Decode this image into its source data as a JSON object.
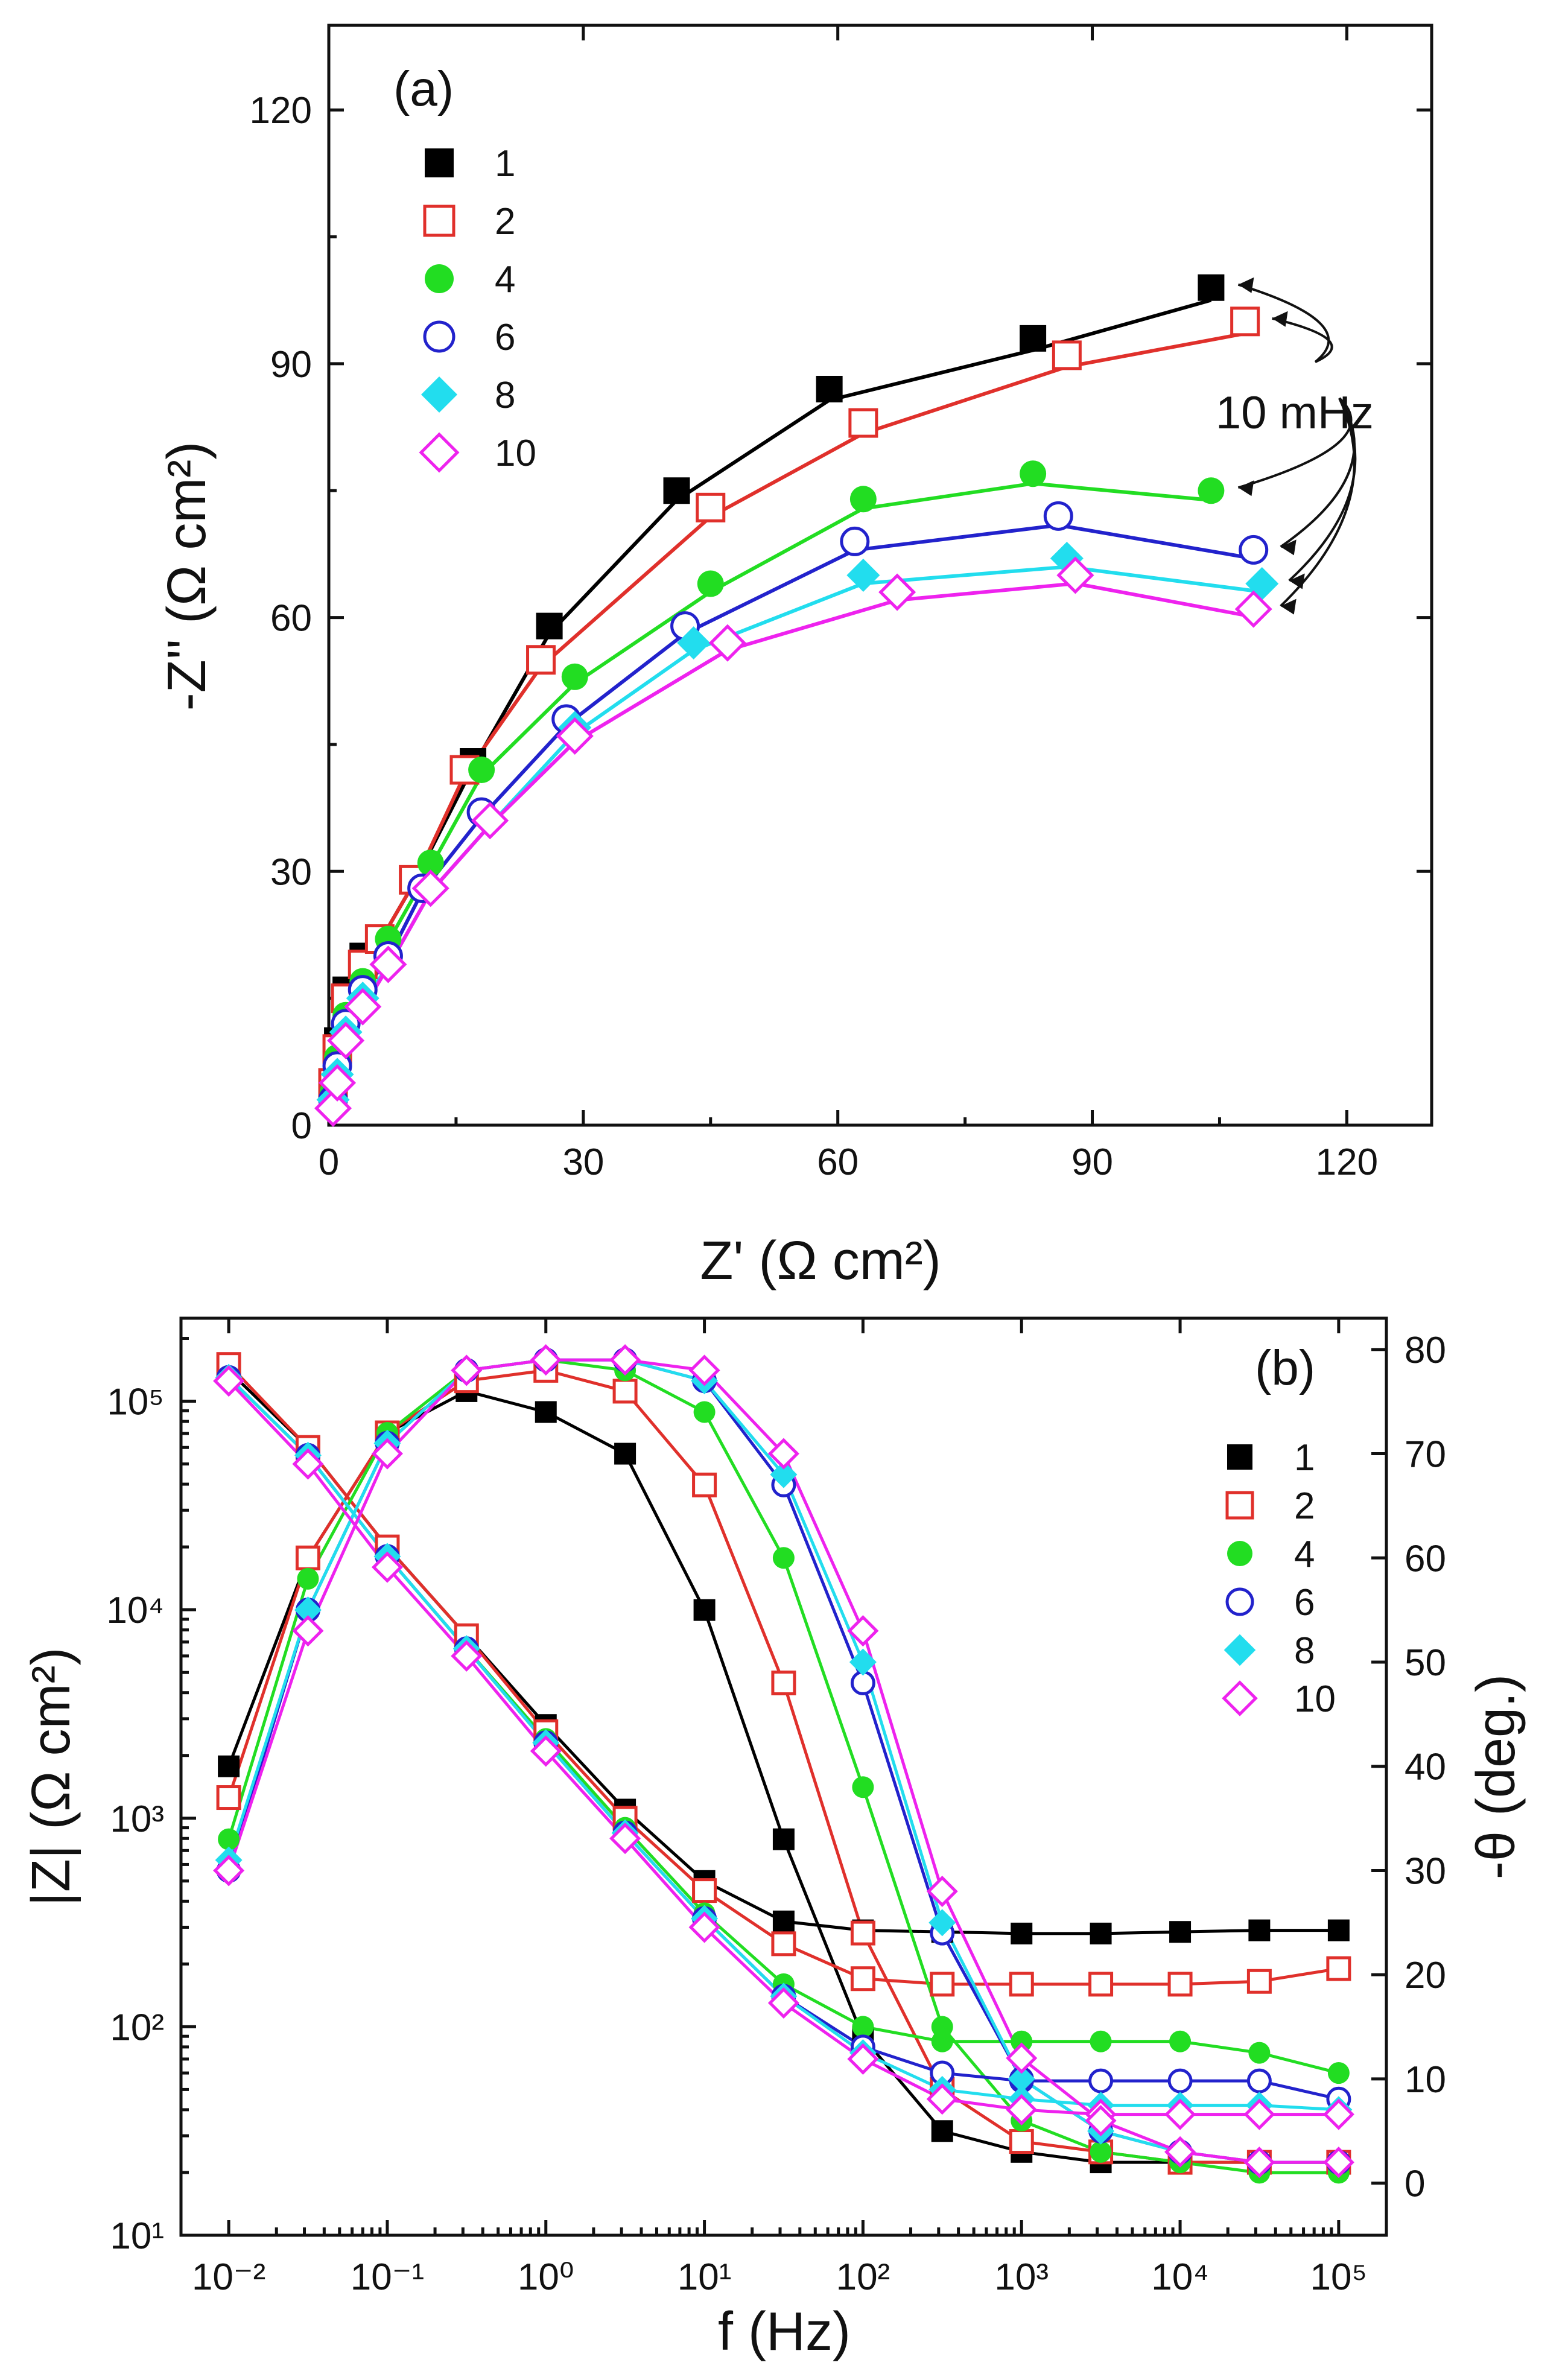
{
  "chart_data": [
    {
      "type": "scatter",
      "panel_label": "(a)",
      "xlabel": "Z' (Ω cm²)",
      "ylabel": "-Z'' (Ω cm²)",
      "xlim": [
        0,
        130
      ],
      "ylim": [
        0,
        130
      ],
      "xticks": [
        0,
        30,
        60,
        90,
        120
      ],
      "yticks": [
        0,
        30,
        60,
        90,
        120
      ],
      "annotation": "10 mHz",
      "legend_position": "top-left",
      "series": [
        {
          "name": "1",
          "color": "#000000",
          "marker": "square-filled",
          "x": [
            0.5,
            1,
            2,
            4,
            6,
            10,
            17,
            26,
            41,
            59,
            83,
            104
          ],
          "y": [
            5,
            10,
            16,
            20,
            22,
            29,
            43,
            59,
            75,
            87,
            93,
            99
          ]
        },
        {
          "name": "2",
          "color": "#e0302b",
          "marker": "square-open",
          "x": [
            0.5,
            1,
            2,
            4,
            6,
            10,
            16,
            25,
            45,
            63,
            87,
            108
          ],
          "y": [
            5,
            9,
            15,
            19,
            22,
            29,
            42,
            55,
            73,
            83,
            91,
            95
          ]
        },
        {
          "name": "4",
          "color": "#22dd22",
          "marker": "circle-filled",
          "x": [
            0.5,
            1,
            2,
            4,
            7,
            12,
            18,
            29,
            45,
            63,
            83,
            104
          ],
          "y": [
            4,
            8,
            13,
            17,
            22,
            31,
            42,
            53,
            64,
            74,
            77,
            75
          ]
        },
        {
          "name": "6",
          "color": "#2222cc",
          "marker": "circle-open",
          "x": [
            0.5,
            1,
            2,
            4,
            7,
            11,
            18,
            28,
            42,
            62,
            86,
            109
          ],
          "y": [
            3,
            7,
            12,
            16,
            20,
            28,
            37,
            48,
            59,
            69,
            72,
            68
          ]
        },
        {
          "name": "8",
          "color": "#22ddee",
          "marker": "diamond-filled",
          "x": [
            0.5,
            1,
            2,
            4,
            7,
            12,
            19,
            29,
            43,
            63,
            87,
            110
          ],
          "y": [
            3,
            6,
            11,
            15,
            19,
            28,
            36,
            47,
            57,
            65,
            67,
            64
          ]
        },
        {
          "name": "10",
          "color": "#ee22ee",
          "marker": "diamond-open",
          "x": [
            0.5,
            1,
            2,
            4,
            7,
            12,
            19,
            29,
            47,
            67,
            88,
            109
          ],
          "y": [
            2,
            5,
            10,
            14,
            19,
            28,
            36,
            46,
            57,
            63,
            65,
            61
          ]
        }
      ]
    },
    {
      "type": "scatter",
      "panel_label": "(b)",
      "xlabel": "f (Hz)",
      "ylabel_left": "|Z| (Ω cm²)",
      "ylabel_right": "-θ (deg.)",
      "x_scale": "log",
      "xlim": [
        0.005,
        200000
      ],
      "xticks": [
        "10⁻²",
        "10⁻¹",
        "10⁰",
        "10¹",
        "10²",
        "10³",
        "10⁴",
        "10⁵"
      ],
      "y_left_scale": "log",
      "y_left_lim": [
        10,
        250000
      ],
      "y_left_ticks": [
        "10¹",
        "10²",
        "10³",
        "10⁴",
        "10⁵"
      ],
      "y_right_lim": [
        -5,
        83
      ],
      "y_right_ticks": [
        0,
        10,
        20,
        30,
        40,
        50,
        60,
        70,
        80
      ],
      "legend_position": "right",
      "freq_hz": [
        0.01,
        0.0316,
        0.1,
        0.316,
        1,
        3.16,
        10,
        31.6,
        100,
        316,
        1000,
        3160,
        10000,
        31600,
        100000
      ],
      "series": [
        {
          "name": "1",
          "color": "#000000",
          "marker": "square-filled",
          "Z": [
            140000,
            60000,
            20000,
            7500,
            2800,
            1100,
            500,
            320,
            290,
            285,
            280,
            280,
            285,
            290,
            290
          ],
          "phase": [
            40,
            60,
            72,
            76,
            74,
            70,
            55,
            33,
            14,
            5,
            3,
            2,
            2,
            2,
            2
          ]
        },
        {
          "name": "2",
          "color": "#e0302b",
          "marker": "square-open",
          "Z": [
            150000,
            60000,
            20000,
            7500,
            2600,
            1000,
            450,
            250,
            170,
            160,
            160,
            160,
            160,
            165,
            190
          ],
          "phase": [
            37,
            60,
            72,
            77,
            78,
            76,
            67,
            48,
            24,
            9,
            4,
            3,
            2,
            2,
            2
          ]
        },
        {
          "name": "4",
          "color": "#22dd22",
          "marker": "circle-filled",
          "Z": [
            130000,
            55000,
            18000,
            6500,
            2400,
            900,
            350,
            160,
            100,
            85,
            85,
            85,
            85,
            75,
            60
          ],
          "phase": [
            33,
            58,
            72,
            78,
            79,
            78,
            74,
            60,
            38,
            15,
            6,
            3,
            2,
            1,
            1
          ]
        },
        {
          "name": "6",
          "color": "#2222cc",
          "marker": "circle-open",
          "Z": [
            130000,
            55000,
            18000,
            6500,
            2300,
            850,
            330,
            140,
            80,
            60,
            55,
            55,
            55,
            55,
            45
          ],
          "phase": [
            30,
            55,
            71,
            78,
            79,
            79,
            77,
            67,
            48,
            24,
            10,
            5,
            3,
            2,
            2
          ]
        },
        {
          "name": "8",
          "color": "#22ddee",
          "marker": "diamond-filled",
          "Z": [
            130000,
            55000,
            18000,
            6500,
            2300,
            850,
            330,
            140,
            75,
            50,
            45,
            42,
            42,
            42,
            40
          ],
          "phase": [
            31,
            55,
            71,
            78,
            79,
            79,
            77,
            68,
            50,
            25,
            10,
            5,
            3,
            2,
            2
          ]
        },
        {
          "name": "10",
          "color": "#ee22ee",
          "marker": "diamond-open",
          "Z": [
            125000,
            50000,
            16000,
            6000,
            2100,
            800,
            300,
            130,
            70,
            45,
            40,
            38,
            38,
            38,
            38
          ],
          "phase": [
            30,
            53,
            70,
            78,
            79,
            79,
            78,
            70,
            53,
            28,
            12,
            6,
            3,
            2,
            2
          ]
        }
      ]
    }
  ]
}
